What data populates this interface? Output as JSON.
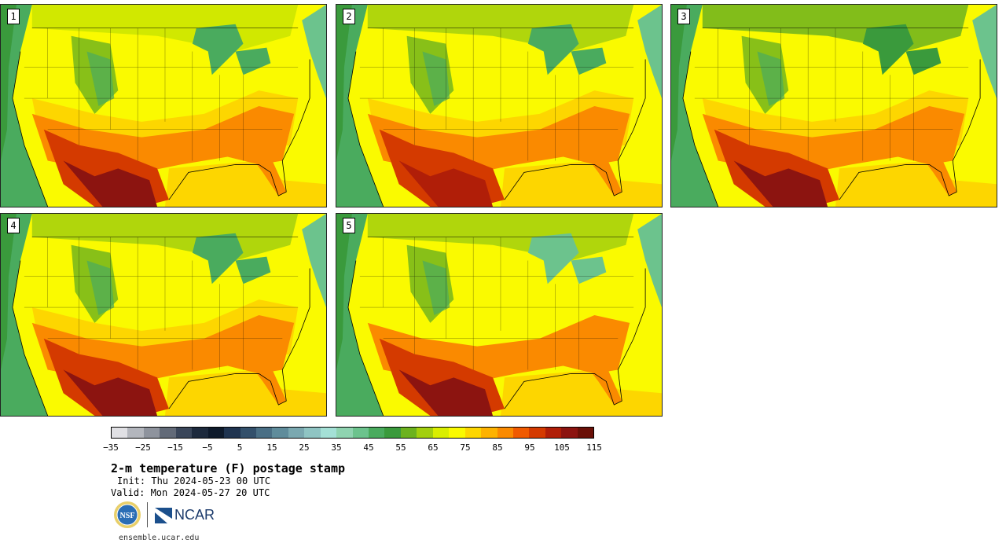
{
  "panels": [
    {
      "label": "1",
      "variant": "hot-southwest-texas"
    },
    {
      "label": "2",
      "variant": "warm-southeast"
    },
    {
      "label": "3",
      "variant": "cool-north-hot-gulf"
    },
    {
      "label": "4",
      "variant": "warm-south"
    },
    {
      "label": "5",
      "variant": "cool-northeast"
    }
  ],
  "colorbar": {
    "colors": [
      "#e0e0e4",
      "#b3b6bd",
      "#8e939d",
      "#626a78",
      "#3a465a",
      "#1d2a3d",
      "#0e1a2b",
      "#1f3450",
      "#33506b",
      "#4a6f85",
      "#5f8c9b",
      "#7aa8b0",
      "#8fc4c3",
      "#a4e0d6",
      "#8fd3b0",
      "#6cc38d",
      "#4aab5e",
      "#3a9a3c",
      "#6cb21e",
      "#a2cf0e",
      "#d9ee00",
      "#fafa00",
      "#fdd600",
      "#fdb200",
      "#fa8a00",
      "#f05a00",
      "#d43a00",
      "#b01e08",
      "#8c1410",
      "#6a1008"
    ],
    "tick_labels": [
      "−35",
      "−25",
      "−15",
      "−5",
      "5",
      "15",
      "25",
      "35",
      "45",
      "55",
      "65",
      "75",
      "85",
      "95",
      "105",
      "115"
    ]
  },
  "title": "2-m temperature (F) postage stamp",
  "init": "Init: Thu 2024-05-23 00 UTC",
  "valid": "Valid: Mon 2024-05-27 20 UTC",
  "logos": {
    "nsf": "NSF",
    "ncar": "NCAR"
  },
  "site": "ensemble.ucar.edu"
}
